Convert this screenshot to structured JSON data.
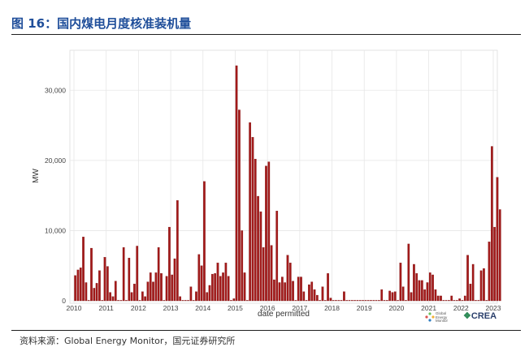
{
  "header": {
    "title": "图 16：国内煤电月度核准装机量"
  },
  "footer": {
    "source": "资料来源：Global Energy Monitor，国元证券研究所"
  },
  "logos": {
    "crea": "CREA",
    "gem_icon": "circle-dots-icon",
    "gem_text_1": "Global",
    "gem_text_2": "Energy",
    "gem_text_3": "Monitor"
  },
  "colors": {
    "title": "#1f4e9a",
    "bar": "#a31a1a",
    "bar_edge": "#7a0e0e",
    "grid": "#e6e6e6",
    "panel_border": "#dcdcdc"
  },
  "chart_data": {
    "type": "bar",
    "x_unit": "month",
    "start": "2010-01",
    "xlabel": "date permitted",
    "ylabel": "MW",
    "ylim": [
      0,
      35000
    ],
    "yticks": [
      0,
      10000,
      20000,
      30000
    ],
    "ytick_labels": [
      "0",
      "10,000",
      "20,000",
      "30,000"
    ],
    "xticks": [
      "2010",
      "2011",
      "2012",
      "2013",
      "2014",
      "2015",
      "2016",
      "2017",
      "2018",
      "2019",
      "2020",
      "2021",
      "2022",
      "2023"
    ],
    "grid": true,
    "values": [
      3600,
      4400,
      4700,
      9100,
      2600,
      0,
      7500,
      1800,
      2500,
      4300,
      0,
      6200,
      4900,
      1200,
      600,
      2800,
      0,
      0,
      7600,
      0,
      6100,
      1200,
      2400,
      7800,
      0,
      1300,
      600,
      2700,
      4000,
      2700,
      4000,
      7600,
      3900,
      0,
      3500,
      10500,
      3700,
      6000,
      14300,
      600,
      0,
      0,
      0,
      2000,
      0,
      1300,
      6600,
      5000,
      17000,
      1200,
      2200,
      3800,
      3900,
      5400,
      3500,
      4000,
      5400,
      3500,
      0,
      300,
      33500,
      27200,
      10000,
      4000,
      0,
      25400,
      23300,
      20200,
      14900,
      12700,
      7600,
      19200,
      19800,
      7900,
      3000,
      12800,
      2600,
      3400,
      2600,
      6500,
      5400,
      2800,
      0,
      3400,
      3400,
      1300,
      0,
      2300,
      2700,
      1600,
      800,
      0,
      2000,
      0,
      3900,
      400,
      0,
      0,
      0,
      0,
      1300,
      0,
      0,
      0,
      0,
      0,
      0,
      0,
      0,
      0,
      0,
      0,
      0,
      0,
      1600,
      0,
      0,
      1400,
      1200,
      1300,
      0,
      5400,
      2000,
      0,
      8100,
      1200,
      5200,
      3900,
      2900,
      2900,
      1600,
      2600,
      4000,
      3700,
      1600,
      700,
      700,
      0,
      0,
      0,
      700,
      0,
      0,
      300,
      0,
      700,
      6500,
      2400,
      5200,
      0,
      0,
      4300,
      4600,
      0,
      8400,
      22000,
      10500,
      17600,
      13000
    ]
  }
}
